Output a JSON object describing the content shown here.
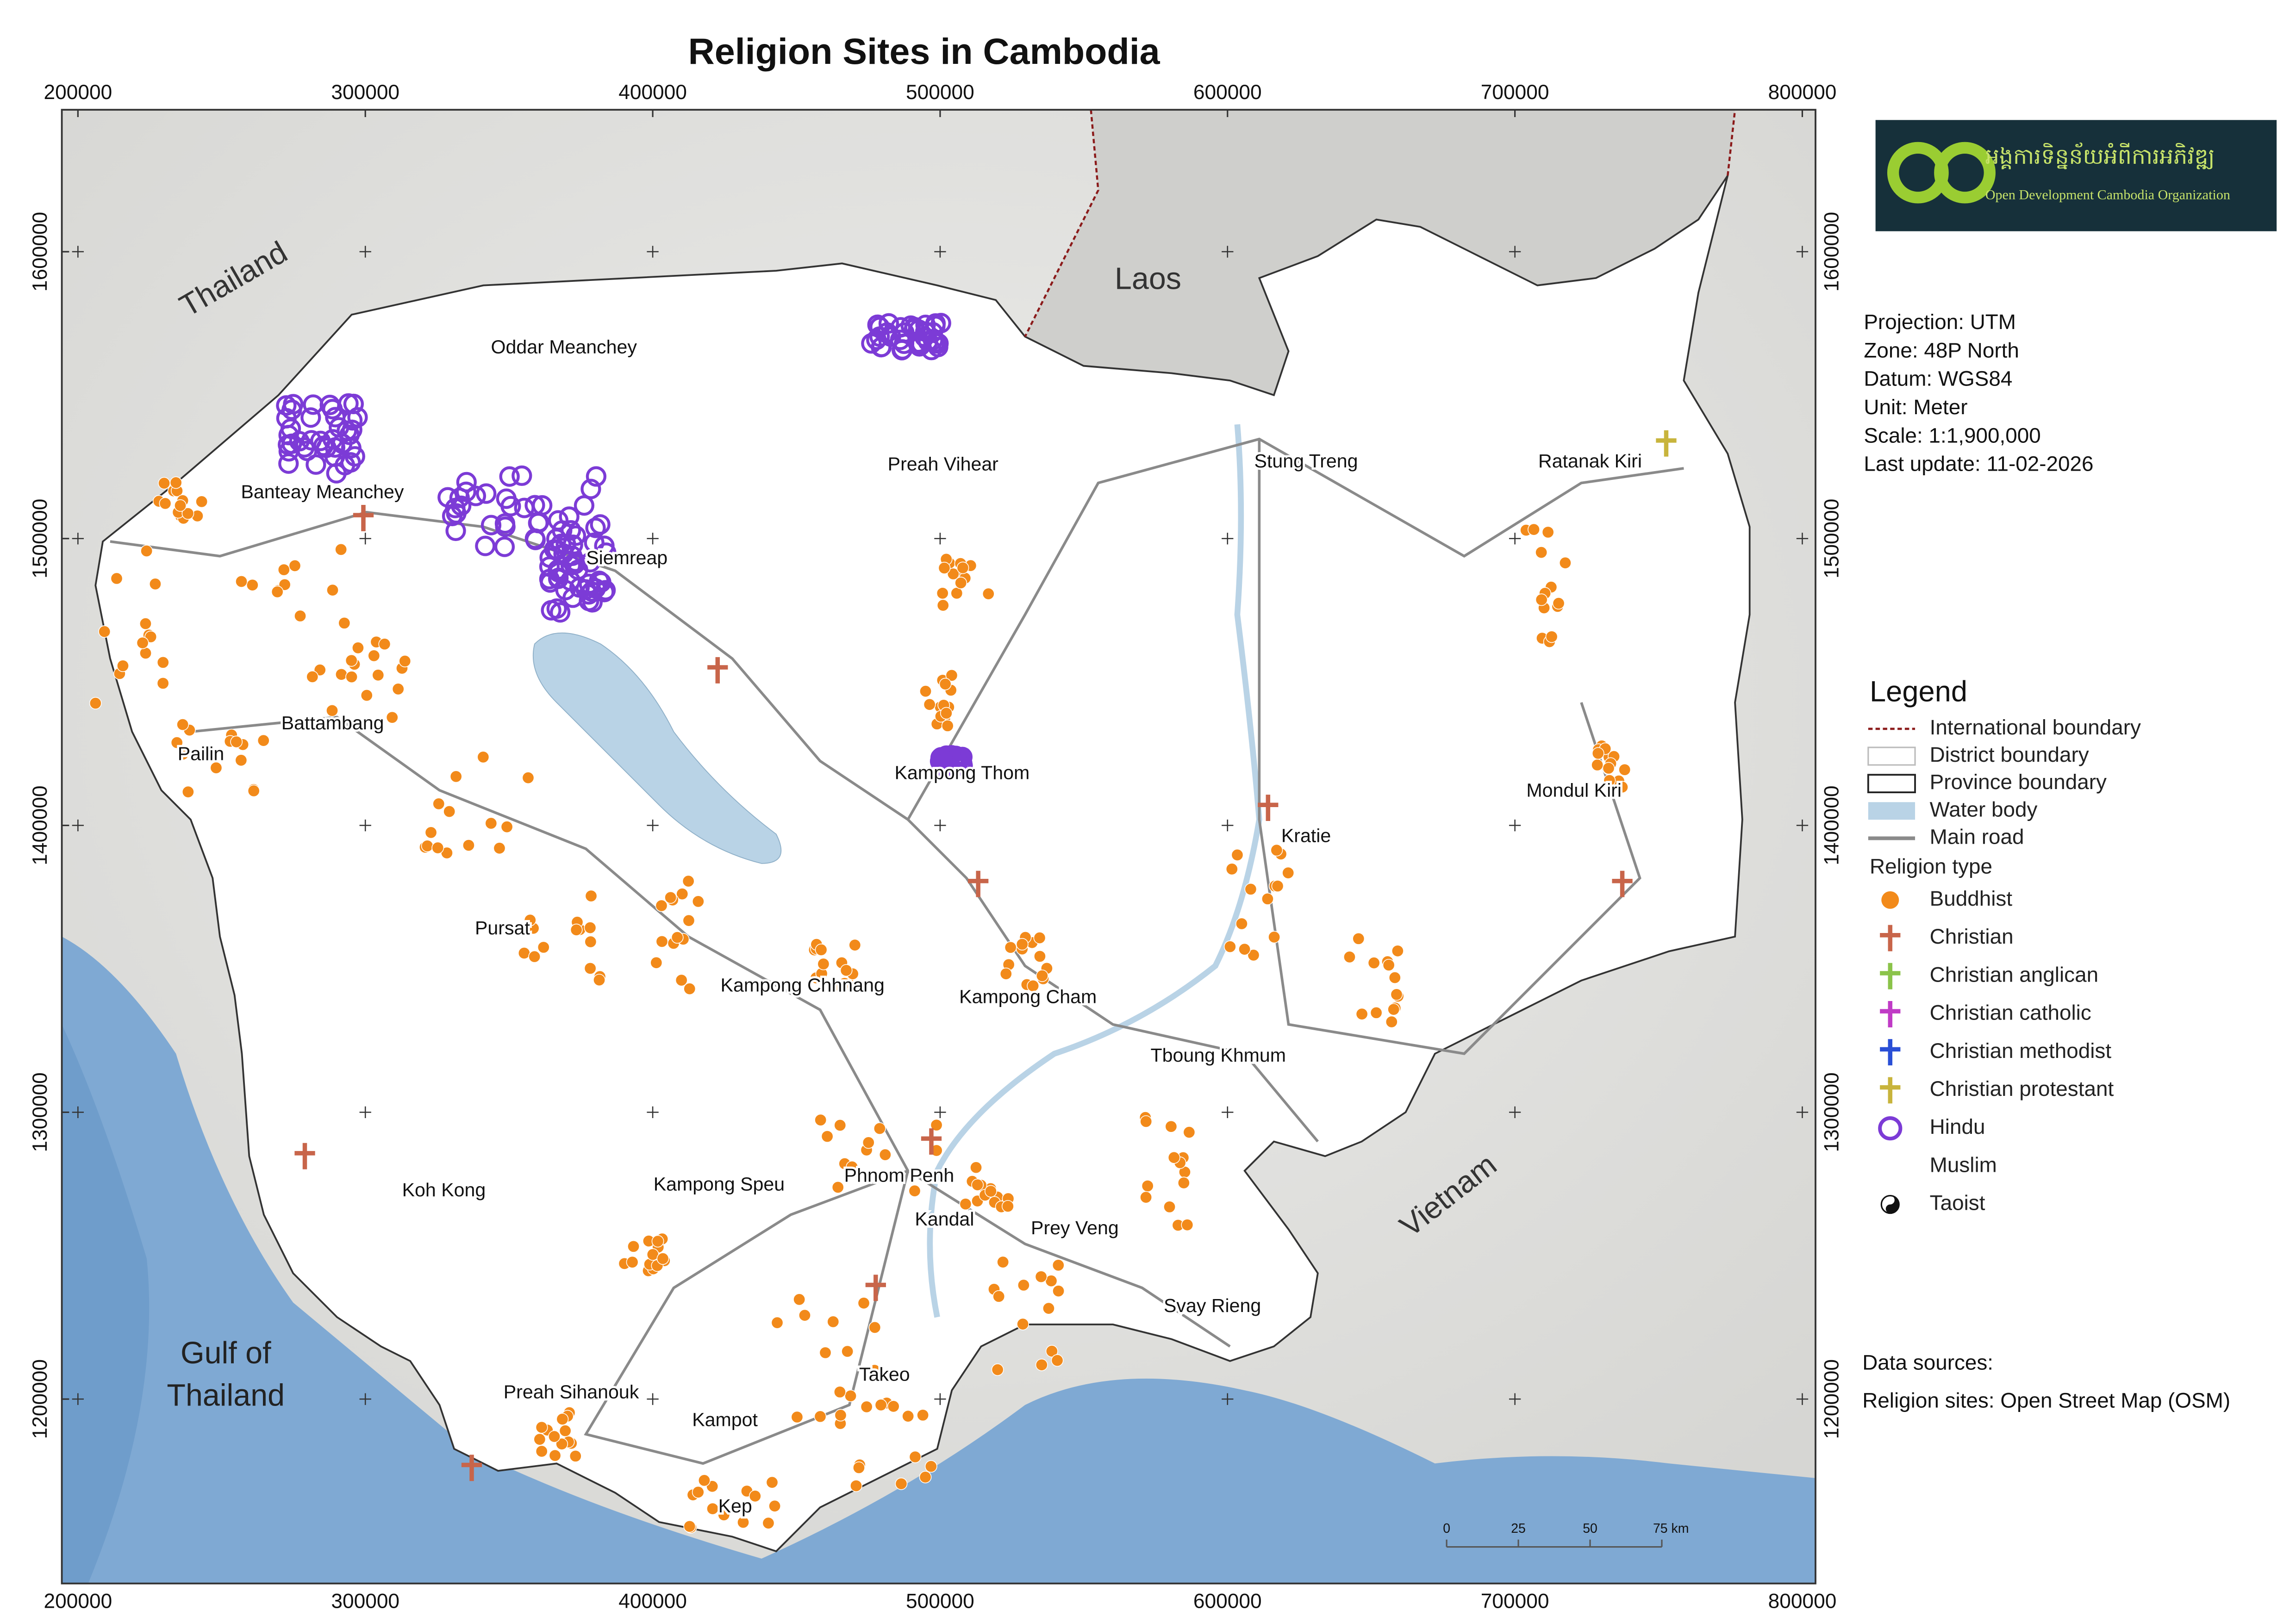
{
  "title": "Religion Sites in Cambodia",
  "xticks": [
    200000,
    300000,
    400000,
    500000,
    600000,
    700000,
    800000
  ],
  "yticks": [
    1200000,
    1300000,
    1400000,
    1500000,
    1600000
  ],
  "countries": [
    "Thailand",
    "Laos",
    "Vietnam"
  ],
  "sea": [
    "Gulf of",
    "Thailand"
  ],
  "provinces": [
    "Oddar Meanchey",
    "Banteay Meanchey",
    "Siemreap",
    "Preah Vihear",
    "Stung Treng",
    "Ratanak Kiri",
    "Battambang",
    "Pailin",
    "Kampong Thom",
    "Mondul Kiri",
    "Kratie",
    "Pursat",
    "Kampong Chhnang",
    "Kampong Cham",
    "Tboung Khmum",
    "Koh Kong",
    "Kampong Speu",
    "Phnom Penh",
    "Kandal",
    "Prey Veng",
    "Svay Rieng",
    "Preah Sihanouk",
    "Takeo",
    "Kampot",
    "Kep"
  ],
  "logo": {
    "khmer": "អង្គការទិន្នន័យអំពីការអភិវឌ្ឍ",
    "name": "Open Development Cambodia Organization"
  },
  "map_info": [
    "Projection: UTM",
    "Zone: 48P North",
    "Datum: WGS84",
    "Unit: Meter",
    "Scale: 1:1,900,000",
    "Last update:  11-02-2026"
  ],
  "legend": {
    "title": "Legend",
    "layers": [
      "International boundary",
      "District boundary",
      "Province boundary",
      "Water body",
      "Main road"
    ],
    "religion_title": "Religion type",
    "religions": [
      "Buddhist",
      "Christian",
      "Christian anglican",
      "Christian catholic",
      "Christian methodist",
      "Christian protestant",
      "Hindu",
      "Muslim",
      "Taoist"
    ]
  },
  "data_sources": [
    "Data sources:",
    "Religion sites: Open Street Map (OSM)"
  ],
  "scale_bar": [
    "0",
    "25",
    "50",
    "75 km"
  ]
}
